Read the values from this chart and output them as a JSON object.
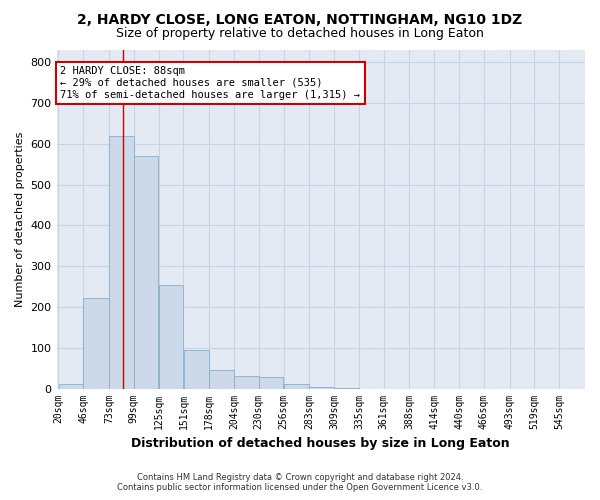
{
  "title": "2, HARDY CLOSE, LONG EATON, NOTTINGHAM, NG10 1DZ",
  "subtitle": "Size of property relative to detached houses in Long Eaton",
  "xlabel": "Distribution of detached houses by size in Long Eaton",
  "ylabel": "Number of detached properties",
  "footer_line1": "Contains HM Land Registry data © Crown copyright and database right 2024.",
  "footer_line2": "Contains public sector information licensed under the Open Government Licence v3.0.",
  "annotation_line1": "2 HARDY CLOSE: 88sqm",
  "annotation_line2": "← 29% of detached houses are smaller (535)",
  "annotation_line3": "71% of semi-detached houses are larger (1,315) →",
  "bar_left_edges": [
    20,
    46,
    73,
    99,
    125,
    151,
    178,
    204,
    230,
    256,
    283,
    309,
    335,
    361,
    388,
    414,
    440,
    466,
    493,
    519
  ],
  "bar_widths": [
    26,
    27,
    26,
    26,
    26,
    27,
    26,
    26,
    26,
    27,
    26,
    26,
    26,
    27,
    26,
    26,
    26,
    27,
    26,
    26
  ],
  "bar_heights": [
    10,
    222,
    620,
    570,
    255,
    95,
    45,
    30,
    28,
    12,
    5,
    2,
    0,
    0,
    0,
    0,
    0,
    0,
    0,
    0
  ],
  "tick_labels": [
    "20sqm",
    "46sqm",
    "73sqm",
    "99sqm",
    "125sqm",
    "151sqm",
    "178sqm",
    "204sqm",
    "230sqm",
    "256sqm",
    "283sqm",
    "309sqm",
    "335sqm",
    "361sqm",
    "388sqm",
    "414sqm",
    "440sqm",
    "466sqm",
    "493sqm",
    "519sqm",
    "545sqm"
  ],
  "bar_color": "#ccd9e8",
  "bar_edge_color": "#8aadc8",
  "vline_color": "#cc0000",
  "vline_x": 88,
  "ylim": [
    0,
    830
  ],
  "yticks": [
    0,
    100,
    200,
    300,
    400,
    500,
    600,
    700,
    800
  ],
  "grid_color": "#c8d4e4",
  "bg_color": "#e4eaf4",
  "annotation_box_color": "#cc0000",
  "xlim_min": 18,
  "xlim_max": 572
}
